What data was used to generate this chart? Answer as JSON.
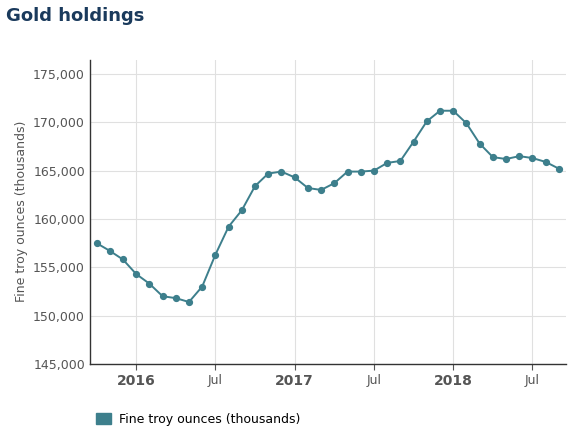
{
  "title": "Gold holdings",
  "ylabel": "Fine troy ounces (thousands)",
  "legend_label": "Fine troy ounces (thousands)",
  "line_color": "#3d7f8c",
  "marker_color": "#3d7f8c",
  "background_color": "#ffffff",
  "grid_color": "#e0e0e0",
  "title_color": "#1a3a5c",
  "tick_color": "#555555",
  "ylim": [
    145000,
    176500
  ],
  "yticks": [
    145000,
    150000,
    155000,
    160000,
    165000,
    170000,
    175000
  ],
  "x_tick_labels": [
    "2016",
    "Jul",
    "2017",
    "Jul",
    "2018",
    "Jul"
  ],
  "x_tick_positions": [
    3,
    9,
    15,
    21,
    27,
    33
  ],
  "data_points": [
    157500,
    156700,
    155800,
    154300,
    153300,
    152000,
    151800,
    151400,
    153000,
    156300,
    159200,
    160900,
    163400,
    164700,
    164900,
    164300,
    163200,
    163000,
    163700,
    164900,
    164900,
    165000,
    165800,
    166000,
    168000,
    170100,
    171200,
    171200,
    169900,
    167800,
    166400,
    166200,
    166500,
    166300,
    165900,
    165200
  ],
  "title_fontsize": 13,
  "tick_fontsize": 9,
  "ylabel_fontsize": 9,
  "year_tick_fontsize": 10
}
